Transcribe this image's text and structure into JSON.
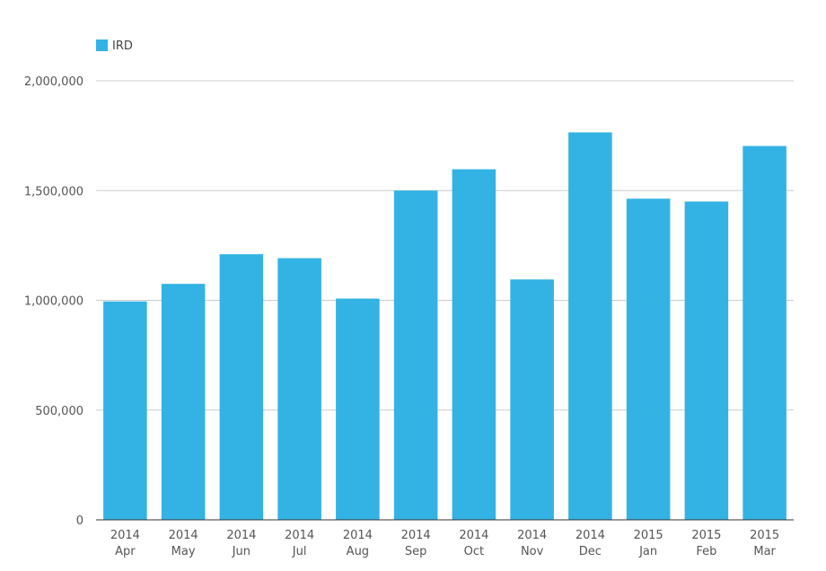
{
  "chart_data": {
    "type": "bar",
    "categories": [
      [
        "2014",
        "Apr"
      ],
      [
        "2014",
        "May"
      ],
      [
        "2014",
        "Jun"
      ],
      [
        "2014",
        "Jul"
      ],
      [
        "2014",
        "Aug"
      ],
      [
        "2014",
        "Sep"
      ],
      [
        "2014",
        "Oct"
      ],
      [
        "2014",
        "Nov"
      ],
      [
        "2014",
        "Dec"
      ],
      [
        "2015",
        "Jan"
      ],
      [
        "2015",
        "Feb"
      ],
      [
        "2015",
        "Mar"
      ]
    ],
    "series": [
      {
        "name": "IRD",
        "color": "#33b3e4",
        "values": [
          995000,
          1075000,
          1210000,
          1192000,
          1008000,
          1500000,
          1597000,
          1095000,
          1765000,
          1463000,
          1450000,
          1703000
        ]
      }
    ],
    "yticks": [
      0,
      500000,
      1000000,
      1500000,
      2000000
    ],
    "ytick_labels": [
      "0",
      "500,000",
      "1,000,000",
      "1,500,000",
      "2,000,000"
    ],
    "ylim": [
      0,
      2000000
    ],
    "grid": true,
    "legend_position": "top-left",
    "title": "",
    "xlabel": "",
    "ylabel": ""
  }
}
